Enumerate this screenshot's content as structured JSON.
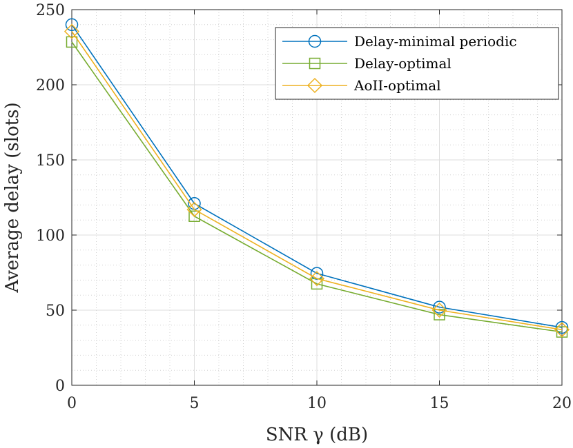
{
  "chart_data": {
    "type": "line",
    "title": "",
    "xlabel": "SNR γ (dB)",
    "ylabel": "Average delay (slots)",
    "x": [
      0,
      5,
      10,
      15,
      20
    ],
    "xlim": [
      0,
      20
    ],
    "ylim": [
      0,
      250
    ],
    "xticks": [
      "0",
      "5",
      "10",
      "15",
      "20"
    ],
    "yticks": [
      "0",
      "50",
      "100",
      "150",
      "200",
      "250"
    ],
    "grid": true,
    "minor_grid": true,
    "legend_position": "top-right",
    "series": [
      {
        "name": "Delay-minimal periodic",
        "marker": "circle",
        "color": "#0072BD",
        "values": [
          240,
          121,
          74.5,
          52,
          38.5
        ]
      },
      {
        "name": "Delay-optimal",
        "marker": "square",
        "color": "#77AC30",
        "values": [
          228.5,
          112.5,
          67.5,
          47,
          35.5
        ]
      },
      {
        "name": "AoII-optimal",
        "marker": "diamond",
        "color": "#EDB120",
        "values": [
          235.5,
          117,
          71,
          50,
          37
        ]
      }
    ]
  }
}
